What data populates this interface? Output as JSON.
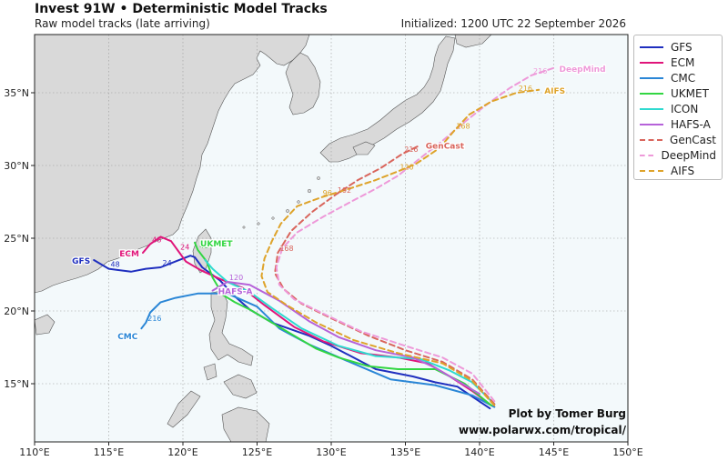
{
  "header": {
    "title": "Invest 91W • Deterministic Model Tracks",
    "subtitle": "Raw model tracks (late arriving)",
    "initialized": "Initialized: 1200 UTC 22 September 2026"
  },
  "credit": {
    "line1": "Plot by Tomer Burg",
    "line2": "www.polarwx.com/tropical/"
  },
  "map": {
    "lon_range": [
      110,
      150
    ],
    "lat_range": [
      11,
      39
    ],
    "lon_ticks": [
      "110°E",
      "115°E",
      "120°E",
      "125°E",
      "130°E",
      "135°E",
      "140°E",
      "145°E",
      "150°E"
    ],
    "lat_ticks": [
      "15°N",
      "20°N",
      "25°N",
      "30°N",
      "35°N"
    ],
    "grid": true,
    "ocean_color": "#f3f9fb",
    "land_color": "#d9d9d9"
  },
  "chart_data": {
    "type": "map-tracks",
    "legend_position": "outside-right",
    "models": [
      {
        "name": "GFS",
        "color": "#1f2fbf",
        "dash": false,
        "label": "GFS",
        "label_hours": [
          "48",
          "24"
        ],
        "track": [
          [
            140.7,
            13.3
          ],
          [
            138.5,
            14.8
          ],
          [
            137.0,
            15.1
          ],
          [
            135.5,
            15.5
          ],
          [
            133.0,
            16.0
          ],
          [
            130.0,
            17.6
          ],
          [
            128.5,
            18.3
          ],
          [
            126.0,
            19.2
          ],
          [
            124.5,
            20.1
          ],
          [
            123.5,
            21.0
          ],
          [
            122.5,
            22.1
          ],
          [
            121.3,
            23.0
          ],
          [
            120.8,
            23.7
          ],
          [
            120.5,
            23.8
          ],
          [
            119.5,
            23.4
          ],
          [
            118.5,
            23.0
          ],
          [
            117.5,
            22.9
          ],
          [
            116.5,
            22.7
          ],
          [
            115.0,
            22.9
          ],
          [
            114.0,
            23.5
          ]
        ]
      },
      {
        "name": "ECM",
        "color": "#e0157a",
        "dash": false,
        "label": "ECM",
        "label_hours": [
          "48",
          "24"
        ],
        "track": [
          [
            140.8,
            13.5
          ],
          [
            139.5,
            14.5
          ],
          [
            138.0,
            15.5
          ],
          [
            136.5,
            16.4
          ],
          [
            134.5,
            16.8
          ],
          [
            132.0,
            17.1
          ],
          [
            129.5,
            17.9
          ],
          [
            127.5,
            18.9
          ],
          [
            125.5,
            20.4
          ],
          [
            124.0,
            21.6
          ],
          [
            122.5,
            22.2
          ],
          [
            121.2,
            22.8
          ],
          [
            120.2,
            23.4
          ],
          [
            119.7,
            24.1
          ],
          [
            119.2,
            24.8
          ],
          [
            118.5,
            25.1
          ],
          [
            117.8,
            24.6
          ],
          [
            117.3,
            24.0
          ]
        ]
      },
      {
        "name": "CMC",
        "color": "#2a86d6",
        "dash": false,
        "label": "CMC",
        "label_hours": [
          "216"
        ],
        "track": [
          [
            141.0,
            13.4
          ],
          [
            139.5,
            14.2
          ],
          [
            137.0,
            14.9
          ],
          [
            134.0,
            15.3
          ],
          [
            131.0,
            16.6
          ],
          [
            128.5,
            17.7
          ],
          [
            126.5,
            18.8
          ],
          [
            125.0,
            20.3
          ],
          [
            123.0,
            21.2
          ],
          [
            121.0,
            21.2
          ],
          [
            119.5,
            20.9
          ],
          [
            118.5,
            20.6
          ],
          [
            117.8,
            19.9
          ],
          [
            117.5,
            19.2
          ],
          [
            117.2,
            18.8
          ]
        ]
      },
      {
        "name": "UKMET",
        "color": "#32d642",
        "dash": false,
        "label": "UKMET",
        "label_hours": [
          "48"
        ],
        "track": [
          [
            140.8,
            13.5
          ],
          [
            139.0,
            15.0
          ],
          [
            137.0,
            16.0
          ],
          [
            134.5,
            16.0
          ],
          [
            132.5,
            16.2
          ],
          [
            130.5,
            16.8
          ],
          [
            129.0,
            17.4
          ],
          [
            127.5,
            18.3
          ],
          [
            126.0,
            19.2
          ],
          [
            124.5,
            20.1
          ],
          [
            123.5,
            20.6
          ],
          [
            122.7,
            21.1
          ],
          [
            122.0,
            22.3
          ],
          [
            121.6,
            23.4
          ],
          [
            121.0,
            24.2
          ],
          [
            120.8,
            24.7
          ]
        ]
      },
      {
        "name": "ICON",
        "color": "#2fdad0",
        "dash": false,
        "label": "",
        "label_hours": [],
        "track": [
          [
            141.0,
            13.6
          ],
          [
            139.5,
            15.1
          ],
          [
            138.0,
            15.9
          ],
          [
            136.0,
            16.7
          ],
          [
            133.0,
            16.9
          ],
          [
            130.5,
            17.6
          ],
          [
            128.0,
            18.8
          ],
          [
            126.0,
            20.2
          ],
          [
            124.5,
            21.3
          ],
          [
            123.0,
            22.0
          ],
          [
            122.0,
            22.9
          ],
          [
            121.5,
            23.5
          ]
        ]
      },
      {
        "name": "HAFS-A",
        "color": "#b662d9",
        "dash": false,
        "label": "HAFS-A",
        "label_hours": [
          "120"
        ],
        "track": [
          [
            140.0,
            14.3
          ],
          [
            138.5,
            15.2
          ],
          [
            137.0,
            16.1
          ],
          [
            135.5,
            16.8
          ],
          [
            133.0,
            17.3
          ],
          [
            130.5,
            18.2
          ],
          [
            128.5,
            19.3
          ],
          [
            126.5,
            20.7
          ],
          [
            124.5,
            21.8
          ],
          [
            123.0,
            22.0
          ],
          [
            122.0,
            21.4
          ]
        ]
      },
      {
        "name": "GenCast",
        "color": "#d9655c",
        "dash": true,
        "label": "GenCast",
        "label_hours": [
          "216",
          "192",
          "168"
        ],
        "track": [
          [
            141.0,
            13.6
          ],
          [
            139.5,
            15.3
          ],
          [
            137.5,
            16.5
          ],
          [
            135.0,
            17.3
          ],
          [
            132.5,
            18.3
          ],
          [
            130.0,
            19.5
          ],
          [
            128.0,
            20.5
          ],
          [
            126.8,
            21.5
          ],
          [
            126.2,
            22.6
          ],
          [
            126.4,
            24.0
          ],
          [
            127.3,
            25.5
          ],
          [
            128.7,
            26.8
          ],
          [
            130.3,
            28.0
          ],
          [
            131.8,
            29.0
          ],
          [
            133.3,
            29.8
          ],
          [
            134.8,
            30.8
          ],
          [
            136.0,
            31.4
          ]
        ]
      },
      {
        "name": "DeepMind",
        "color": "#ee99d9",
        "dash": true,
        "label": "DeepMind",
        "label_hours": [
          "216"
        ],
        "track": [
          [
            141.0,
            13.8
          ],
          [
            139.5,
            15.7
          ],
          [
            137.5,
            16.8
          ],
          [
            135.0,
            17.6
          ],
          [
            132.0,
            18.6
          ],
          [
            129.5,
            19.8
          ],
          [
            127.5,
            20.8
          ],
          [
            126.5,
            21.8
          ],
          [
            126.3,
            23.0
          ],
          [
            126.7,
            24.3
          ],
          [
            127.7,
            25.4
          ],
          [
            129.5,
            26.5
          ],
          [
            131.5,
            27.6
          ],
          [
            133.0,
            28.4
          ],
          [
            134.5,
            29.3
          ],
          [
            136.0,
            30.5
          ],
          [
            137.5,
            31.7
          ],
          [
            139.0,
            33.0
          ],
          [
            140.5,
            34.2
          ],
          [
            142.0,
            35.3
          ],
          [
            143.5,
            36.2
          ],
          [
            145.0,
            36.7
          ]
        ]
      },
      {
        "name": "AIFS",
        "color": "#dea32a",
        "dash": true,
        "label": "AIFS",
        "label_hours": [
          "216",
          "168",
          "120",
          "96"
        ],
        "track": [
          [
            141.0,
            13.5
          ],
          [
            139.5,
            15.2
          ],
          [
            137.5,
            16.4
          ],
          [
            134.5,
            17.1
          ],
          [
            131.5,
            18.0
          ],
          [
            129.0,
            19.2
          ],
          [
            127.0,
            20.4
          ],
          [
            125.7,
            21.3
          ],
          [
            125.3,
            22.4
          ],
          [
            125.5,
            23.6
          ],
          [
            126.0,
            24.8
          ],
          [
            126.6,
            26.0
          ],
          [
            127.7,
            27.2
          ],
          [
            129.3,
            27.8
          ],
          [
            131.2,
            28.4
          ],
          [
            133.0,
            29.0
          ],
          [
            134.5,
            29.6
          ],
          [
            135.7,
            30.1
          ],
          [
            137.3,
            31.2
          ],
          [
            138.3,
            32.4
          ],
          [
            139.3,
            33.5
          ],
          [
            140.8,
            34.4
          ],
          [
            142.5,
            35.0
          ],
          [
            144.0,
            35.2
          ]
        ]
      }
    ]
  }
}
